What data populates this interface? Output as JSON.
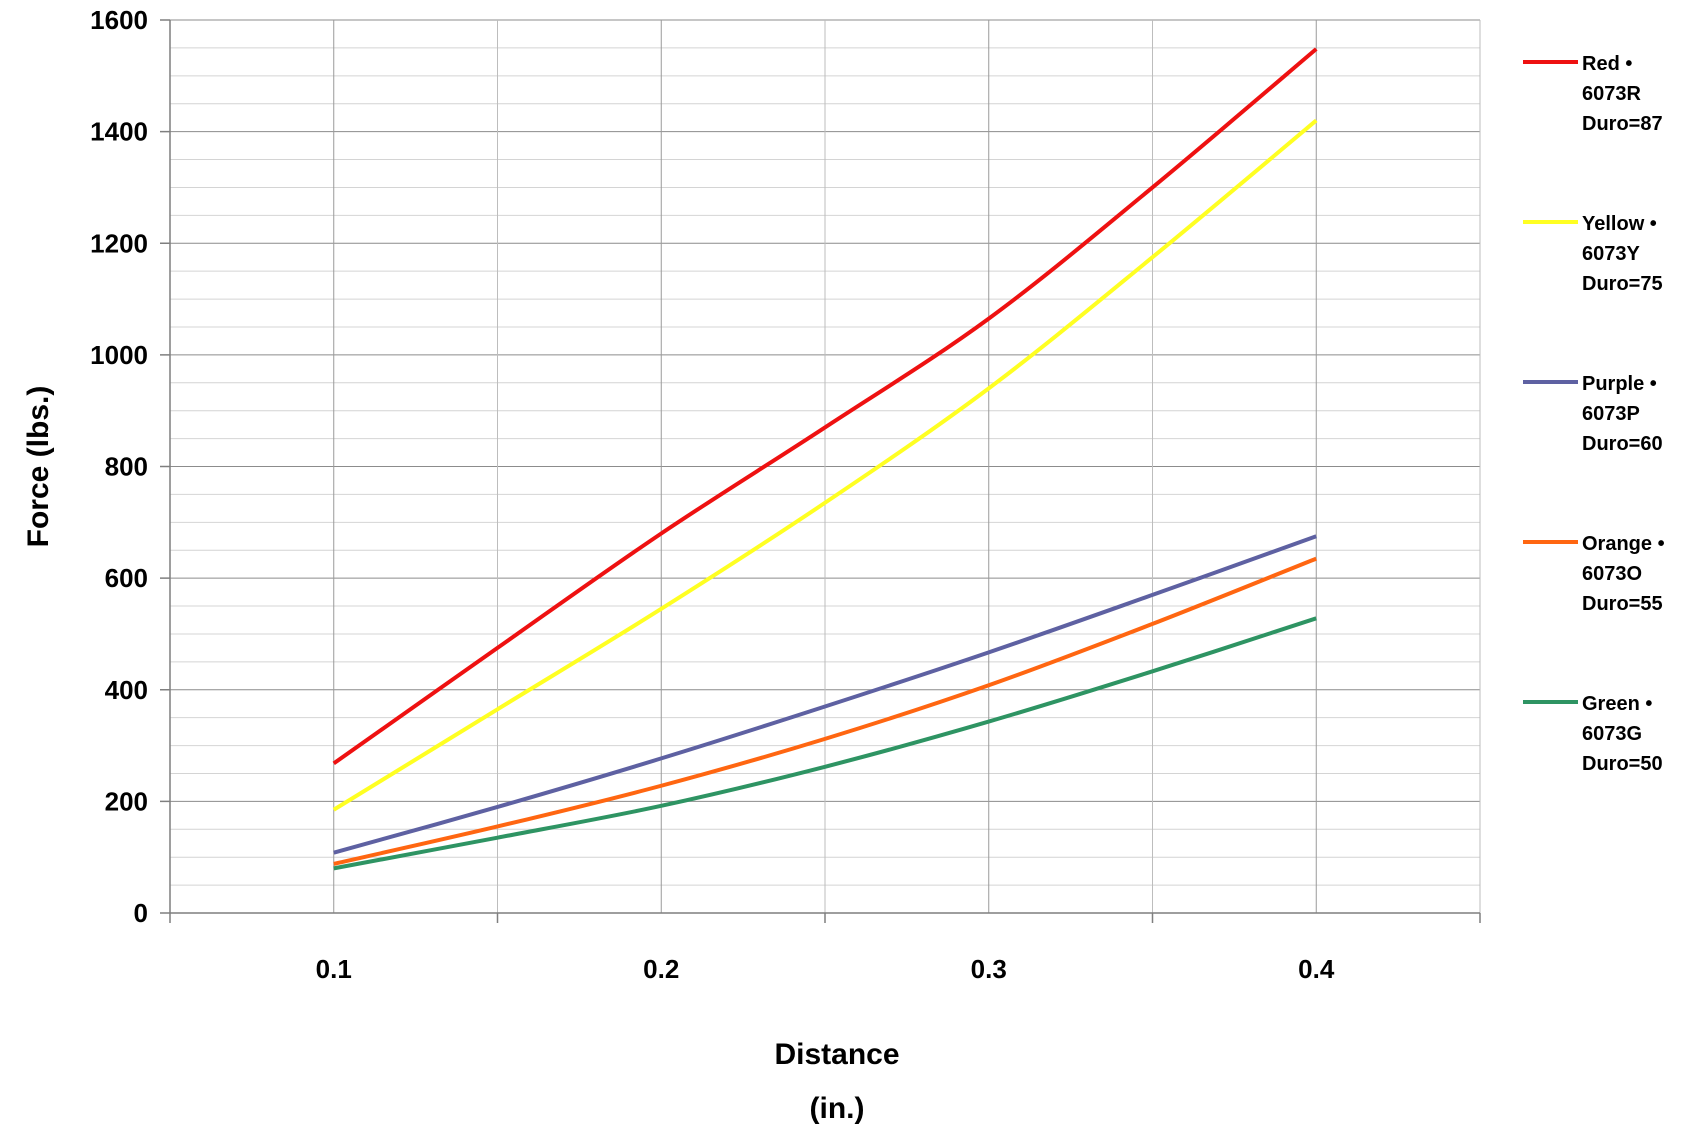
{
  "chart_data": {
    "type": "line",
    "title": "",
    "xlabel": [
      "Distance",
      "(in.)"
    ],
    "ylabel": "Force (lbs.)",
    "xlim": [
      0.05,
      0.45
    ],
    "ylim": [
      0,
      1600
    ],
    "x_ticks": [
      0.1,
      0.2,
      0.3,
      0.4
    ],
    "x_tick_labels": [
      "0.1",
      "0.2",
      "0.3",
      "0.4"
    ],
    "x_minor_gridlines": [
      0.05,
      0.15,
      0.25,
      0.35,
      0.45
    ],
    "y_ticks": [
      0,
      200,
      400,
      600,
      800,
      1000,
      1200,
      1400,
      1600
    ],
    "y_tick_labels": [
      "0",
      "200",
      "400",
      "600",
      "800",
      "1000",
      "1200",
      "1400",
      "1600"
    ],
    "y_minor_step": 50,
    "grid": true,
    "legend_position": "right",
    "x": [
      0.1,
      0.15,
      0.2,
      0.25,
      0.3,
      0.35,
      0.4
    ],
    "series": [
      {
        "name_lines": [
          "Red •",
          "6073R",
          "Duro=87"
        ],
        "color": "#ee1111",
        "values": [
          268,
          475,
          680,
          870,
          1065,
          1300,
          1548
        ]
      },
      {
        "name_lines": [
          "Yellow •",
          "6073Y",
          "Duro=75"
        ],
        "color": "#ffff22",
        "values": [
          185,
          365,
          545,
          735,
          940,
          1175,
          1420
        ]
      },
      {
        "name_lines": [
          "Purple •",
          "6073P",
          "Duro=60"
        ],
        "color": "#5e61a2",
        "values": [
          108,
          190,
          277,
          370,
          467,
          570,
          675
        ]
      },
      {
        "name_lines": [
          "Orange •",
          "6073O",
          "Duro=55"
        ],
        "color": "#ff6611",
        "values": [
          88,
          155,
          228,
          312,
          408,
          518,
          635
        ]
      },
      {
        "name_lines": [
          "Green •",
          "6073G",
          "Duro=50"
        ],
        "color": "#2e9463",
        "values": [
          80,
          135,
          192,
          262,
          343,
          433,
          528
        ]
      }
    ]
  }
}
